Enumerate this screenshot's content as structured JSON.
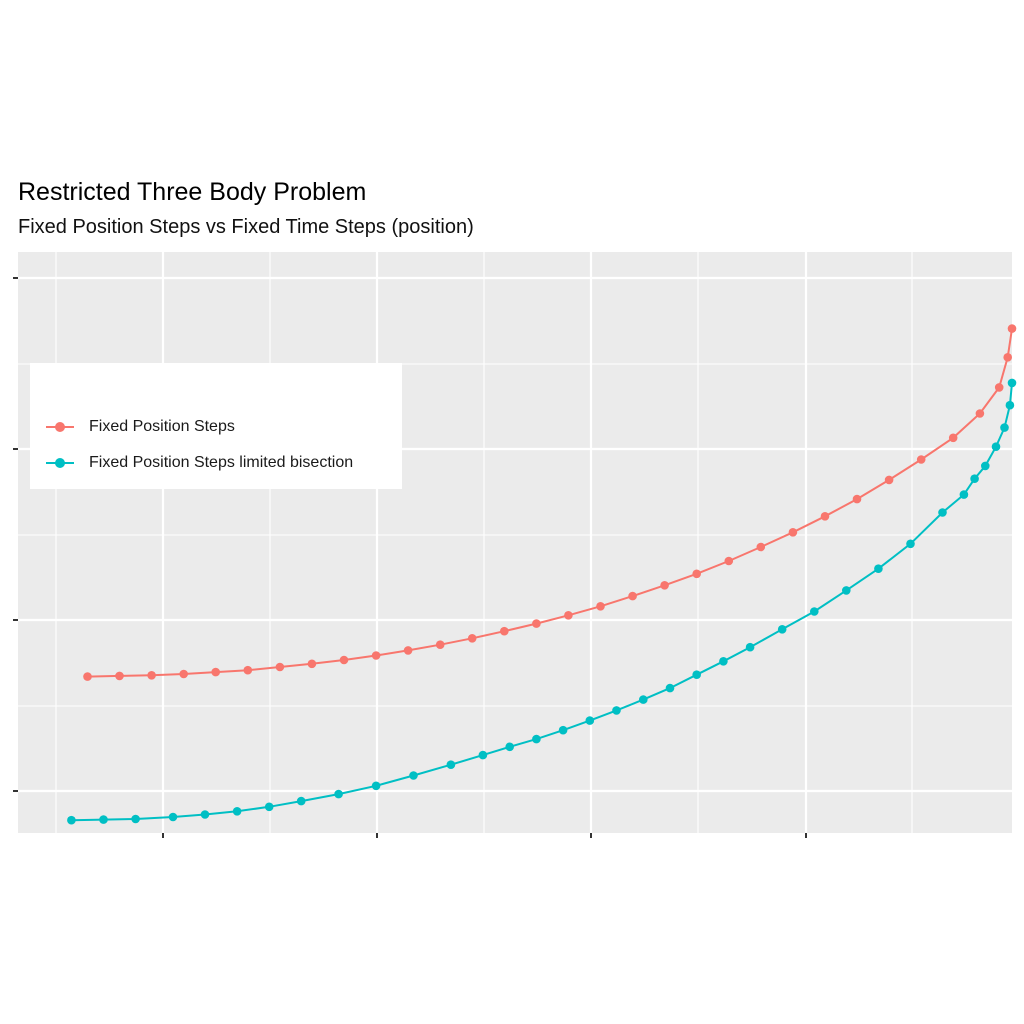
{
  "chart_data": {
    "type": "line",
    "title": "Restricted Three Body Problem",
    "subtitle": "Fixed Position Steps vs Fixed Time Steps (position)",
    "xlabel": "",
    "ylabel": "",
    "grid": true,
    "legend_position": "top-left",
    "x_range": [
      0.07,
      1.0
    ],
    "y_range": [
      0.07,
      0.98
    ],
    "series": [
      {
        "name": "Fixed Position Steps",
        "color": "#F8766D",
        "points": [
          [
            0.135,
            0.315
          ],
          [
            0.165,
            0.316
          ],
          [
            0.195,
            0.317
          ],
          [
            0.225,
            0.319
          ],
          [
            0.255,
            0.322
          ],
          [
            0.285,
            0.325
          ],
          [
            0.315,
            0.33
          ],
          [
            0.345,
            0.335
          ],
          [
            0.375,
            0.341
          ],
          [
            0.405,
            0.348
          ],
          [
            0.435,
            0.356
          ],
          [
            0.465,
            0.365
          ],
          [
            0.495,
            0.375
          ],
          [
            0.525,
            0.386
          ],
          [
            0.555,
            0.398
          ],
          [
            0.585,
            0.411
          ],
          [
            0.615,
            0.425
          ],
          [
            0.645,
            0.441
          ],
          [
            0.675,
            0.458
          ],
          [
            0.705,
            0.476
          ],
          [
            0.735,
            0.496
          ],
          [
            0.765,
            0.518
          ],
          [
            0.795,
            0.541
          ],
          [
            0.825,
            0.566
          ],
          [
            0.855,
            0.593
          ],
          [
            0.885,
            0.623
          ],
          [
            0.915,
            0.655
          ],
          [
            0.945,
            0.689
          ],
          [
            0.97,
            0.727
          ],
          [
            0.988,
            0.768
          ],
          [
            0.996,
            0.815
          ],
          [
            1.0,
            0.86
          ]
        ]
      },
      {
        "name": "Fixed Position Steps limited bisection",
        "color": "#00BFC4",
        "points": [
          [
            0.12,
            0.09
          ],
          [
            0.15,
            0.091
          ],
          [
            0.18,
            0.092
          ],
          [
            0.215,
            0.095
          ],
          [
            0.245,
            0.099
          ],
          [
            0.275,
            0.104
          ],
          [
            0.305,
            0.111
          ],
          [
            0.335,
            0.12
          ],
          [
            0.37,
            0.131
          ],
          [
            0.405,
            0.144
          ],
          [
            0.44,
            0.16
          ],
          [
            0.475,
            0.177
          ],
          [
            0.505,
            0.192
          ],
          [
            0.53,
            0.205
          ],
          [
            0.555,
            0.217
          ],
          [
            0.58,
            0.231
          ],
          [
            0.605,
            0.246
          ],
          [
            0.63,
            0.262
          ],
          [
            0.655,
            0.279
          ],
          [
            0.68,
            0.297
          ],
          [
            0.705,
            0.318
          ],
          [
            0.73,
            0.339
          ],
          [
            0.755,
            0.361
          ],
          [
            0.785,
            0.389
          ],
          [
            0.815,
            0.417
          ],
          [
            0.845,
            0.45
          ],
          [
            0.875,
            0.484
          ],
          [
            0.905,
            0.523
          ],
          [
            0.935,
            0.572
          ],
          [
            0.955,
            0.6
          ],
          [
            0.965,
            0.625
          ],
          [
            0.975,
            0.645
          ],
          [
            0.985,
            0.675
          ],
          [
            0.993,
            0.705
          ],
          [
            0.998,
            0.74
          ],
          [
            1.0,
            0.775
          ]
        ]
      }
    ]
  }
}
